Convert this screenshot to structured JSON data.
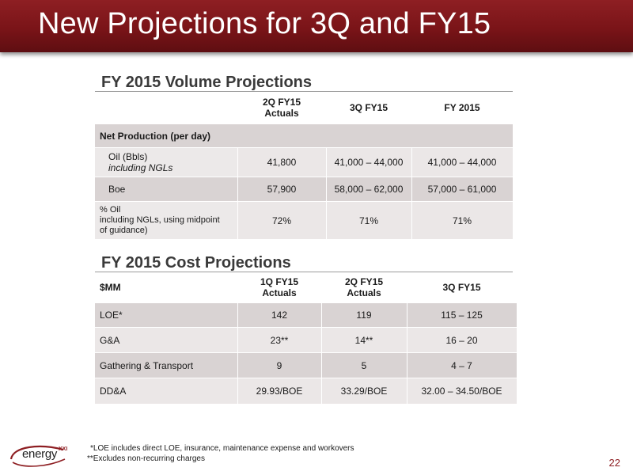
{
  "slide": {
    "title": "New Projections for 3Q and FY15",
    "page_number": "22"
  },
  "volume": {
    "section_title": "FY 2015 Volume Projections",
    "col_headers": [
      "2Q FY15\nActuals",
      "3Q FY15",
      "FY 2015"
    ],
    "group_label": "Net Production (per day)",
    "rows": [
      {
        "label": "Oil (Bbls)",
        "sublabel": "including NGLs",
        "values": [
          "41,800",
          "41,000 – 44,000",
          "41,000 – 44,000"
        ]
      },
      {
        "label": "Boe",
        "values": [
          "57,900",
          "58,000 – 62,000",
          "57,000 – 61,000"
        ]
      },
      {
        "label": "% Oil\nincluding NGLs, using midpoint\nof guidance)",
        "values": [
          "72%",
          "71%",
          "71%"
        ]
      }
    ]
  },
  "cost": {
    "section_title": "FY 2015 Cost Projections",
    "unit_label": "$MM",
    "col_headers": [
      "1Q FY15\nActuals",
      "2Q FY15\nActuals",
      "3Q FY15"
    ],
    "rows": [
      {
        "label": "LOE*",
        "values": [
          "142",
          "119",
          "115 – 125"
        ]
      },
      {
        "label": "G&A",
        "values": [
          "23**",
          "14**",
          "16 – 20"
        ]
      },
      {
        "label": "Gathering & Transport",
        "values": [
          "9",
          "5",
          "4 – 7"
        ]
      },
      {
        "label": "DD&A",
        "values": [
          "29.93/BOE",
          "33.29/BOE",
          "32.00 – 34.50/BOE"
        ]
      }
    ]
  },
  "footnotes": [
    "*LOE includes direct LOE, insurance, maintenance expense and workovers",
    "**Excludes non-recurring charges"
  ],
  "logo": {
    "text": "energy",
    "superscript": "XXI",
    "icon": "swoosh-logo-icon"
  },
  "colors": {
    "brand": "#7a1418",
    "row_dark": "#d9d3d3",
    "row_light": "#ebe7e7"
  }
}
